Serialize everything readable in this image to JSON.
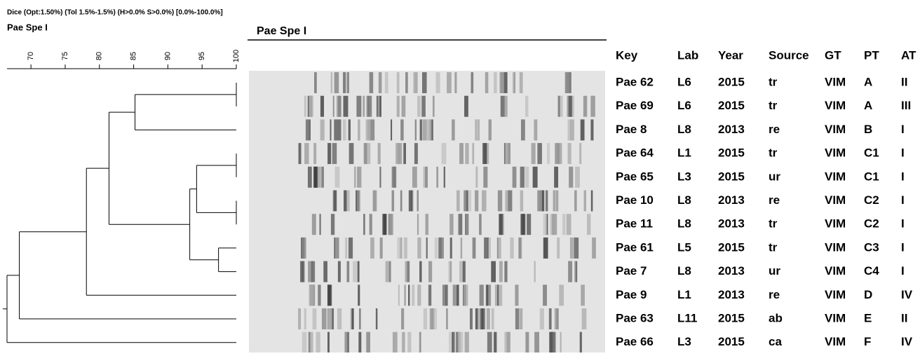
{
  "header": {
    "method": "Dice (Opt:1.50%) (Tol 1.5%-1.5%) (H>0.0% S>0.0%) [0.0%-100.0%]",
    "dendrogram_title": "Pae Spe I",
    "gel_title": "Pae Spe I"
  },
  "axis": {
    "xlim": [
      66.5,
      100
    ],
    "xticks": [
      70,
      75,
      80,
      85,
      90,
      95,
      100
    ]
  },
  "dendrogram": {
    "merges": [
      {
        "a": 0,
        "b": 1,
        "similarity": 100
      },
      {
        "a": 12,
        "b": 2,
        "similarity": 85.2
      },
      {
        "a": 3,
        "b": 4,
        "similarity": 100
      },
      {
        "a": 5,
        "b": 6,
        "similarity": 100
      },
      {
        "a": 14,
        "b": 15,
        "similarity": 94.2
      },
      {
        "a": 7,
        "b": 8,
        "similarity": 97.4
      },
      {
        "a": 16,
        "b": 17,
        "similarity": 93.2
      },
      {
        "a": 13,
        "b": 18,
        "similarity": 81.4
      },
      {
        "a": 19,
        "b": 9,
        "similarity": 78.1
      },
      {
        "a": 20,
        "b": 10,
        "similarity": 68.3
      },
      {
        "a": 21,
        "b": 11,
        "similarity": 66.5
      }
    ]
  },
  "table": {
    "columns": [
      "Key",
      "Lab",
      "Year",
      "Source",
      "GT",
      "PT",
      "AT"
    ],
    "rows": [
      [
        "Pae 62",
        "L6",
        "2015",
        "tr",
        "VIM",
        "A",
        "II"
      ],
      [
        "Pae 69",
        "L6",
        "2015",
        "tr",
        "VIM",
        "A",
        "III"
      ],
      [
        "Pae 8",
        "L8",
        "2013",
        "re",
        "VIM",
        "B",
        "I"
      ],
      [
        "Pae 64",
        "L1",
        "2015",
        "tr",
        "VIM",
        "C1",
        "I"
      ],
      [
        "Pae 65",
        "L3",
        "2015",
        "ur",
        "VIM",
        "C1",
        "I"
      ],
      [
        "Pae 10",
        "L8",
        "2013",
        "re",
        "VIM",
        "C2",
        "I"
      ],
      [
        "Pae 11",
        "L8",
        "2013",
        "tr",
        "VIM",
        "C2",
        "I"
      ],
      [
        "Pae 61",
        "L5",
        "2015",
        "tr",
        "VIM",
        "C3",
        "I"
      ],
      [
        "Pae 7",
        "L8",
        "2013",
        "ur",
        "VIM",
        "C4",
        "I"
      ],
      [
        "Pae 9",
        "L1",
        "2013",
        "re",
        "VIM",
        "D",
        "IV"
      ],
      [
        "Pae 63",
        "L11",
        "2015",
        "ab",
        "VIM",
        "E",
        "II"
      ],
      [
        "Pae 66",
        "L3",
        "2015",
        "ca",
        "VIM",
        "F",
        "IV"
      ]
    ]
  }
}
